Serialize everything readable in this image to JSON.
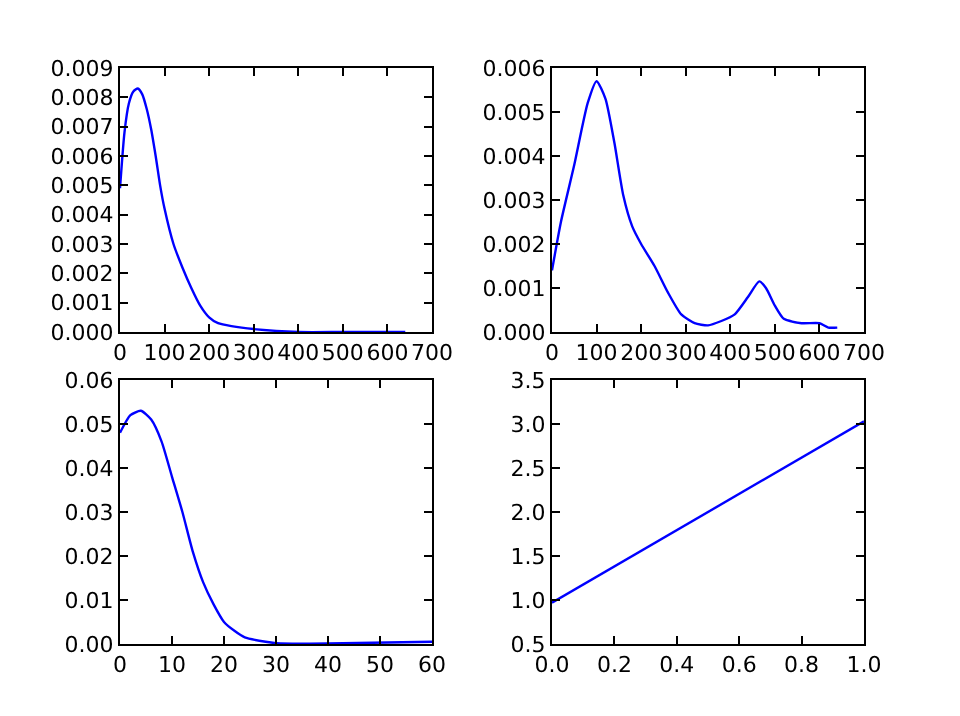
{
  "chart_data": [
    {
      "type": "line",
      "x": [
        0,
        10,
        20,
        30,
        40,
        50,
        60,
        70,
        80,
        90,
        100,
        120,
        140,
        160,
        180,
        200,
        220,
        250,
        300,
        400,
        500,
        640
      ],
      "series": [
        {
          "color": "#0000ff",
          "values": [
            0.0049,
            0.0068,
            0.0078,
            0.0082,
            0.0083,
            0.0081,
            0.0076,
            0.0069,
            0.006,
            0.005,
            0.0042,
            0.003,
            0.0022,
            0.0015,
            0.0009,
            0.0005,
            0.0003,
            0.0002,
            0.0001,
            0,
            0,
            0
          ]
        }
      ],
      "xlim": [
        0,
        700
      ],
      "xticks": [
        0,
        100,
        200,
        300,
        400,
        500,
        600,
        700
      ],
      "ylim": [
        0,
        0.009
      ],
      "yticks": [
        {
          "value": 0,
          "label": "0.000"
        },
        {
          "value": 0.001,
          "label": "0.001"
        },
        {
          "value": 0.002,
          "label": "0.002"
        },
        {
          "value": 0.003,
          "label": "0.003"
        },
        {
          "value": 0.004,
          "label": "0.004"
        },
        {
          "value": 0.005,
          "label": "0.005"
        },
        {
          "value": 0.006,
          "label": "0.006"
        },
        {
          "value": 0.007,
          "label": "0.007"
        },
        {
          "value": 0.008,
          "label": "0.008"
        },
        {
          "value": 0.009,
          "label": "0.009"
        }
      ]
    },
    {
      "type": "line",
      "x": [
        0,
        20,
        50,
        80,
        100,
        120,
        140,
        160,
        180,
        200,
        230,
        260,
        290,
        320,
        350,
        380,
        410,
        440,
        465,
        480,
        500,
        520,
        560,
        600,
        620,
        640
      ],
      "series": [
        {
          "color": "#0000ff",
          "values": [
            0.0014,
            0.0025,
            0.0038,
            0.0052,
            0.0057,
            0.0053,
            0.0043,
            0.0031,
            0.0024,
            0.002,
            0.0015,
            0.0009,
            0.0004,
            0.0002,
            0.00015,
            0.00025,
            0.0004,
            0.0008,
            0.00115,
            0.001,
            0.0006,
            0.0003,
            0.0002,
            0.0002,
            0.0001,
            0.0001
          ]
        }
      ],
      "xlim": [
        0,
        700
      ],
      "xticks": [
        0,
        100,
        200,
        300,
        400,
        500,
        600,
        700
      ],
      "ylim": [
        0,
        0.006
      ],
      "yticks": [
        {
          "value": 0,
          "label": "0.000"
        },
        {
          "value": 0.001,
          "label": "0.001"
        },
        {
          "value": 0.002,
          "label": "0.002"
        },
        {
          "value": 0.003,
          "label": "0.003"
        },
        {
          "value": 0.004,
          "label": "0.004"
        },
        {
          "value": 0.005,
          "label": "0.005"
        },
        {
          "value": 0.006,
          "label": "0.006"
        }
      ]
    },
    {
      "type": "line",
      "x": [
        0,
        2,
        4,
        6,
        8,
        10,
        12,
        14,
        16,
        18,
        20,
        22,
        24,
        28,
        30,
        40,
        60
      ],
      "series": [
        {
          "color": "#0000ff",
          "values": [
            0.048,
            0.052,
            0.053,
            0.051,
            0.046,
            0.038,
            0.03,
            0.021,
            0.014,
            0.009,
            0.005,
            0.003,
            0.0015,
            0.0005,
            0.0002,
            0.0001,
            0.0005
          ]
        }
      ],
      "xlim": [
        0,
        60
      ],
      "xticks": [
        0,
        10,
        20,
        30,
        40,
        50,
        60
      ],
      "ylim": [
        0,
        0.06
      ],
      "yticks": [
        {
          "value": 0,
          "label": "0.00"
        },
        {
          "value": 0.01,
          "label": "0.01"
        },
        {
          "value": 0.02,
          "label": "0.02"
        },
        {
          "value": 0.03,
          "label": "0.03"
        },
        {
          "value": 0.04,
          "label": "0.04"
        },
        {
          "value": 0.05,
          "label": "0.05"
        },
        {
          "value": 0.06,
          "label": "0.06"
        }
      ]
    },
    {
      "type": "line",
      "x": [
        0,
        1
      ],
      "series": [
        {
          "color": "#0000ff",
          "values": [
            0.97,
            3.03
          ]
        }
      ],
      "xlim": [
        0,
        1
      ],
      "xticks": [
        {
          "value": 0,
          "label": "0.0"
        },
        {
          "value": 0.2,
          "label": "0.2"
        },
        {
          "value": 0.4,
          "label": "0.4"
        },
        {
          "value": 0.6,
          "label": "0.6"
        },
        {
          "value": 0.8,
          "label": "0.8"
        },
        {
          "value": 1,
          "label": "1.0"
        }
      ],
      "ylim": [
        0.5,
        3.5
      ],
      "yticks": [
        0.5,
        {
          "value": 1,
          "label": "1.0"
        },
        1.5,
        {
          "value": 2,
          "label": "2.0"
        },
        2.5,
        {
          "value": 3,
          "label": "3.0"
        },
        3.5
      ]
    }
  ]
}
